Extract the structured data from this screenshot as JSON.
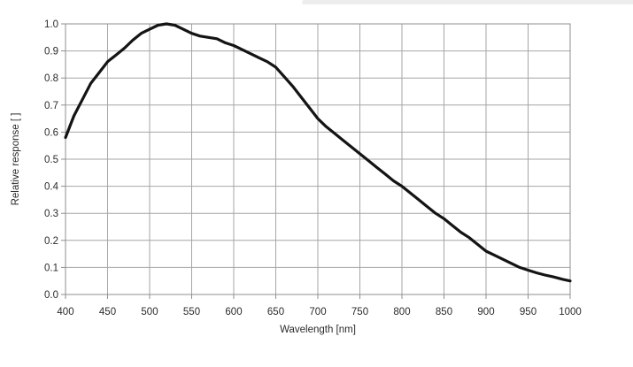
{
  "colors": {
    "background": "#ffffff",
    "line": "#141414",
    "grid": "#a6a6a6",
    "axis": "#8f8f8f",
    "text": "#2b2b2b",
    "top_edge_artifact": "#ededed"
  },
  "chart_data": {
    "type": "line",
    "title": "",
    "xlabel": "Wavelength [nm]",
    "ylabel": "Relative response [ ]",
    "xlim": [
      400,
      1000
    ],
    "ylim": [
      0.0,
      1.0
    ],
    "grid": true,
    "legend": false,
    "x_tick_labels": [
      "400",
      "450",
      "500",
      "550",
      "600",
      "650",
      "700",
      "750",
      "800",
      "850",
      "900",
      "950",
      "1000"
    ],
    "x_tick_values": [
      400,
      450,
      500,
      550,
      600,
      650,
      700,
      750,
      800,
      850,
      900,
      950,
      1000
    ],
    "y_tick_labels": [
      "0.0",
      "0.1",
      "0.2",
      "0.3",
      "0.4",
      "0.5",
      "0.6",
      "0.7",
      "0.8",
      "0.9",
      "1.0"
    ],
    "y_tick_values": [
      0.0,
      0.1,
      0.2,
      0.3,
      0.4,
      0.5,
      0.6,
      0.7,
      0.8,
      0.9,
      1.0
    ],
    "series": [
      {
        "name": "Relative response",
        "x": [
          400,
          410,
          420,
          430,
          440,
          450,
          460,
          470,
          480,
          490,
          500,
          510,
          520,
          530,
          540,
          550,
          560,
          570,
          580,
          590,
          600,
          610,
          620,
          630,
          640,
          650,
          660,
          670,
          680,
          690,
          700,
          710,
          720,
          730,
          740,
          750,
          760,
          770,
          780,
          790,
          800,
          810,
          820,
          830,
          840,
          850,
          860,
          870,
          880,
          890,
          900,
          910,
          920,
          930,
          940,
          950,
          960,
          970,
          980,
          990,
          1000
        ],
        "y": [
          0.58,
          0.66,
          0.72,
          0.78,
          0.82,
          0.86,
          0.885,
          0.91,
          0.94,
          0.965,
          0.98,
          0.995,
          1.0,
          0.995,
          0.98,
          0.965,
          0.955,
          0.95,
          0.945,
          0.93,
          0.92,
          0.905,
          0.89,
          0.875,
          0.86,
          0.84,
          0.805,
          0.77,
          0.73,
          0.69,
          0.65,
          0.62,
          0.595,
          0.57,
          0.545,
          0.52,
          0.495,
          0.47,
          0.445,
          0.42,
          0.4,
          0.375,
          0.35,
          0.325,
          0.3,
          0.28,
          0.255,
          0.23,
          0.21,
          0.185,
          0.16,
          0.145,
          0.13,
          0.115,
          0.1,
          0.09,
          0.08,
          0.072,
          0.065,
          0.057,
          0.05
        ]
      }
    ]
  }
}
